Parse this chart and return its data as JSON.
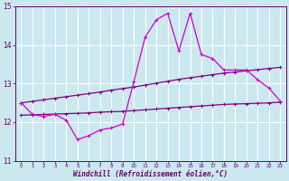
{
  "xlabel": "Windchill (Refroidissement éolien,°C)",
  "background_color": "#cce8ef",
  "grid_color": "#ffffff",
  "line_color_main": "#cc00cc",
  "line_color_trend1": "#800080",
  "line_color_trend2": "#800080",
  "xlim": [
    -0.5,
    23.5
  ],
  "ylim": [
    11,
    15
  ],
  "xticks": [
    0,
    1,
    2,
    3,
    4,
    5,
    6,
    7,
    8,
    9,
    10,
    11,
    12,
    13,
    14,
    15,
    16,
    17,
    18,
    19,
    20,
    21,
    22,
    23
  ],
  "yticks": [
    11,
    12,
    13,
    14,
    15
  ],
  "hours": [
    0,
    1,
    2,
    3,
    4,
    5,
    6,
    7,
    8,
    9,
    10,
    11,
    12,
    13,
    14,
    15,
    16,
    17,
    18,
    19,
    20,
    21,
    22,
    23
  ],
  "main_line": [
    12.5,
    12.2,
    12.15,
    12.2,
    12.05,
    11.55,
    11.65,
    11.8,
    11.85,
    11.95,
    13.05,
    14.2,
    14.65,
    14.82,
    13.85,
    14.82,
    13.75,
    13.65,
    13.35,
    13.35,
    13.35,
    13.1,
    12.88,
    12.55
  ],
  "trend_line1": [
    12.5,
    12.54,
    12.58,
    12.62,
    12.66,
    12.7,
    12.74,
    12.78,
    12.83,
    12.87,
    12.91,
    12.96,
    13.01,
    13.06,
    13.11,
    13.15,
    13.19,
    13.23,
    13.27,
    13.3,
    13.33,
    13.36,
    13.39,
    13.42
  ],
  "trend_line2": [
    12.18,
    12.19,
    12.2,
    12.21,
    12.22,
    12.23,
    12.24,
    12.26,
    12.27,
    12.28,
    12.3,
    12.32,
    12.34,
    12.36,
    12.38,
    12.4,
    12.42,
    12.44,
    12.46,
    12.47,
    12.48,
    12.49,
    12.5,
    12.52
  ]
}
